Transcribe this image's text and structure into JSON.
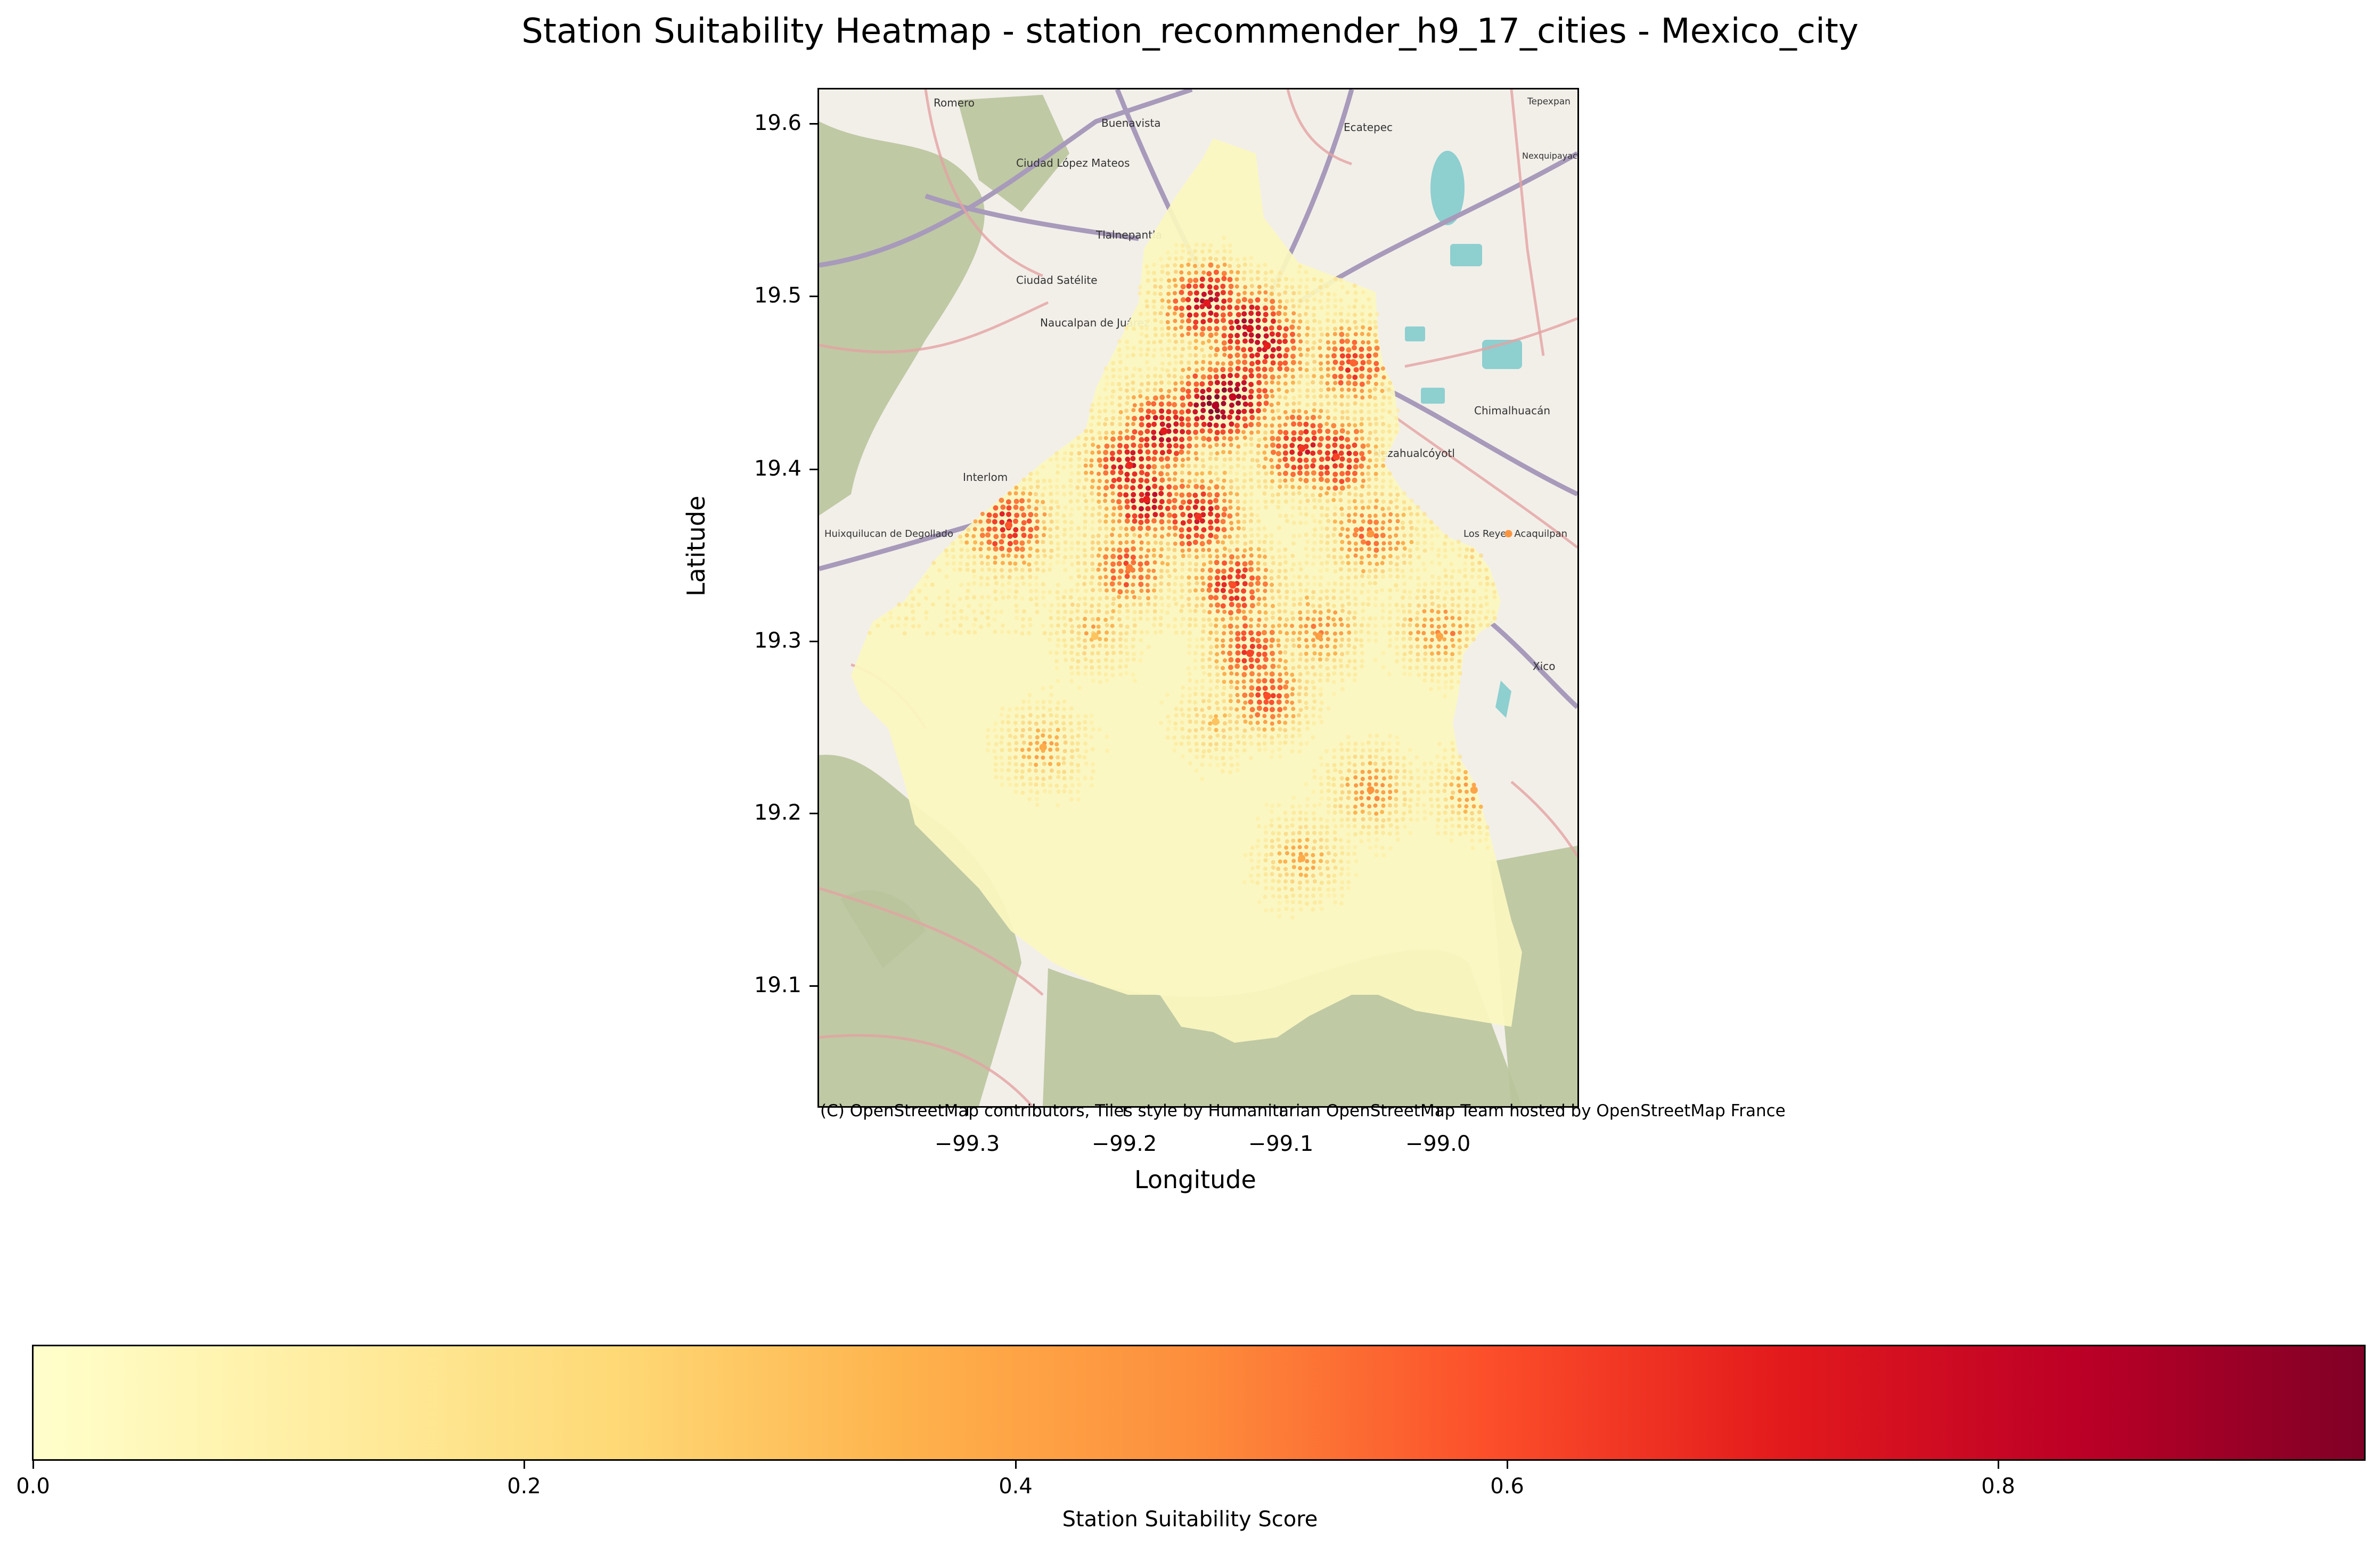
{
  "title": "Station Suitability Heatmap - station_recommender_h9_17_cities - Mexico_city",
  "axes": {
    "xlabel": "Longitude",
    "ylabel": "Latitude",
    "xticks": [
      "−99.3",
      "−99.2",
      "−99.1",
      "−99.0"
    ],
    "yticks": [
      "19.6",
      "19.5",
      "19.4",
      "19.3",
      "19.2",
      "19.1"
    ]
  },
  "map": {
    "attribution": "(C) OpenStreetMap contributors, Tiles style by Humanitarian OpenStreetMap Team hosted by OpenStreetMap France",
    "place_labels": [
      "Romero",
      "Buenavista",
      "Ecatepec",
      "Tepexpan",
      "Ciudad López Mateos",
      "Tlalnepantla",
      "Ciudad Satélite",
      "Naucalpan de Juárez",
      "Nezahualcóyotl",
      "Chimalhuacán",
      "Interlom",
      "Huixquilucan de Degollado",
      "Los Reyes Acaquilpan",
      "Xico",
      "Nexquipayac"
    ],
    "colors": {
      "land": "#f2efe9",
      "forest": "#b9c49c",
      "water": "#8ecfd0",
      "major_road": "#a79aba",
      "secondary_road": "#e3a2a2"
    }
  },
  "colorbar": {
    "label": "Station Suitability Score",
    "ticks": [
      "0.0",
      "0.2",
      "0.4",
      "0.6",
      "0.8"
    ],
    "range": [
      0,
      0.95
    ],
    "colormap": "YlOrRd"
  },
  "chart_data": {
    "type": "heatmap",
    "title": "Station Suitability Heatmap - station_recommender_h9_17_cities - Mexico_city",
    "xlabel": "Longitude",
    "ylabel": "Latitude",
    "xlim": [
      -99.38,
      -98.94
    ],
    "ylim": [
      19.025,
      19.62
    ],
    "value_range": [
      0,
      0.95
    ],
    "colorbar_label": "Station Suitability Score",
    "hotspots": [
      {
        "lon": -99.15,
        "lat": 19.435,
        "score": 0.85
      },
      {
        "lon": -99.14,
        "lat": 19.44,
        "score": 0.8
      },
      {
        "lon": -99.13,
        "lat": 19.48,
        "score": 0.75
      },
      {
        "lon": -99.155,
        "lat": 19.495,
        "score": 0.72
      },
      {
        "lon": -99.12,
        "lat": 19.47,
        "score": 0.7
      },
      {
        "lon": -99.18,
        "lat": 19.42,
        "score": 0.72
      },
      {
        "lon": -99.19,
        "lat": 19.38,
        "score": 0.7
      },
      {
        "lon": -99.2,
        "lat": 19.4,
        "score": 0.68
      },
      {
        "lon": -99.16,
        "lat": 19.37,
        "score": 0.66
      },
      {
        "lon": -99.1,
        "lat": 19.41,
        "score": 0.65
      },
      {
        "lon": -99.08,
        "lat": 19.405,
        "score": 0.62
      },
      {
        "lon": -99.14,
        "lat": 19.33,
        "score": 0.6
      },
      {
        "lon": -99.13,
        "lat": 19.29,
        "score": 0.62
      },
      {
        "lon": -99.12,
        "lat": 19.265,
        "score": 0.6
      },
      {
        "lon": -99.07,
        "lat": 19.46,
        "score": 0.55
      },
      {
        "lon": -99.27,
        "lat": 19.365,
        "score": 0.58
      },
      {
        "lon": -99.2,
        "lat": 19.34,
        "score": 0.5
      },
      {
        "lon": -99.06,
        "lat": 19.36,
        "score": 0.45
      },
      {
        "lon": -98.98,
        "lat": 19.36,
        "score": 0.45
      },
      {
        "lon": -99.09,
        "lat": 19.3,
        "score": 0.42
      },
      {
        "lon": -99.02,
        "lat": 19.3,
        "score": 0.4
      },
      {
        "lon": -99.06,
        "lat": 19.21,
        "score": 0.45
      },
      {
        "lon": -99.0,
        "lat": 19.21,
        "score": 0.4
      },
      {
        "lon": -99.1,
        "lat": 19.17,
        "score": 0.38
      },
      {
        "lon": -99.25,
        "lat": 19.235,
        "score": 0.38
      },
      {
        "lon": -99.15,
        "lat": 19.25,
        "score": 0.3
      },
      {
        "lon": -99.22,
        "lat": 19.3,
        "score": 0.3
      }
    ]
  }
}
